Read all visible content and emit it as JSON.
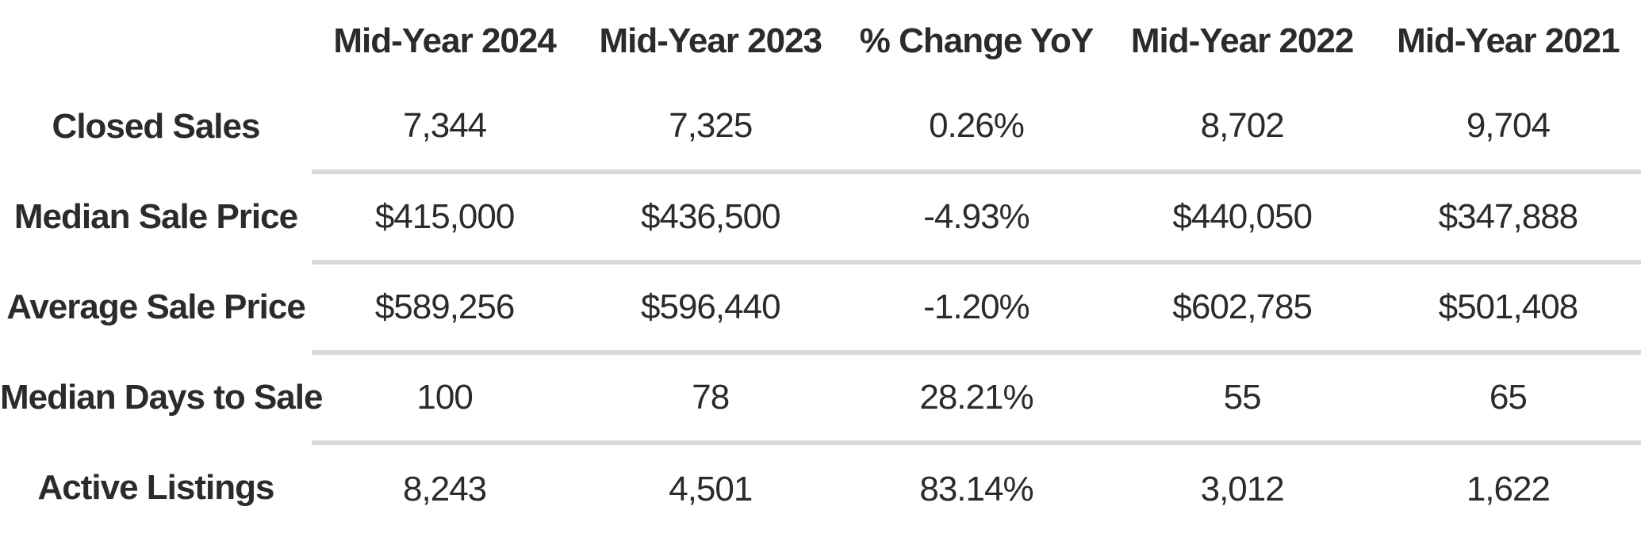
{
  "table": {
    "columns": [
      "",
      "Mid-Year 2024",
      "Mid-Year 2023",
      "% Change YoY",
      "Mid-Year 2022",
      "Mid-Year 2021"
    ],
    "rows": [
      {
        "label": "Closed Sales",
        "values": [
          "7,344",
          "7,325",
          "0.26%",
          "8,702",
          "9,704"
        ]
      },
      {
        "label": "Median Sale Price",
        "values": [
          "$415,000",
          "$436,500",
          "-4.93%",
          "$440,050",
          "$347,888"
        ]
      },
      {
        "label": "Average Sale Price",
        "values": [
          "$589,256",
          "$596,440",
          "-1.20%",
          "$602,785",
          "$501,408"
        ]
      },
      {
        "label": "Median Days to Sale",
        "values": [
          "100",
          "78",
          "28.21%",
          "55",
          "65"
        ]
      },
      {
        "label": "Active Listings",
        "values": [
          "8,243",
          "4,501",
          "83.14%",
          "3,012",
          "1,622"
        ]
      }
    ],
    "colors": {
      "text": "#2b2b2b",
      "divider": "#d9d9d9",
      "background": "#ffffff"
    }
  },
  "chart_data": {
    "type": "table",
    "title": "",
    "columns": [
      "Mid-Year 2024",
      "Mid-Year 2023",
      "% Change YoY",
      "Mid-Year 2022",
      "Mid-Year 2021"
    ],
    "rows": [
      {
        "metric": "Closed Sales",
        "mid_year_2024": 7344,
        "mid_year_2023": 7325,
        "pct_change_yoy": 0.26,
        "mid_year_2022": 8702,
        "mid_year_2021": 9704
      },
      {
        "metric": "Median Sale Price",
        "mid_year_2024": 415000,
        "mid_year_2023": 436500,
        "pct_change_yoy": -4.93,
        "mid_year_2022": 440050,
        "mid_year_2021": 347888
      },
      {
        "metric": "Average Sale Price",
        "mid_year_2024": 589256,
        "mid_year_2023": 596440,
        "pct_change_yoy": -1.2,
        "mid_year_2022": 602785,
        "mid_year_2021": 501408
      },
      {
        "metric": "Median Days to Sale",
        "mid_year_2024": 100,
        "mid_year_2023": 78,
        "pct_change_yoy": 28.21,
        "mid_year_2022": 55,
        "mid_year_2021": 65
      },
      {
        "metric": "Active Listings",
        "mid_year_2024": 8243,
        "mid_year_2023": 4501,
        "pct_change_yoy": 83.14,
        "mid_year_2022": 3012,
        "mid_year_2021": 1622
      }
    ]
  }
}
